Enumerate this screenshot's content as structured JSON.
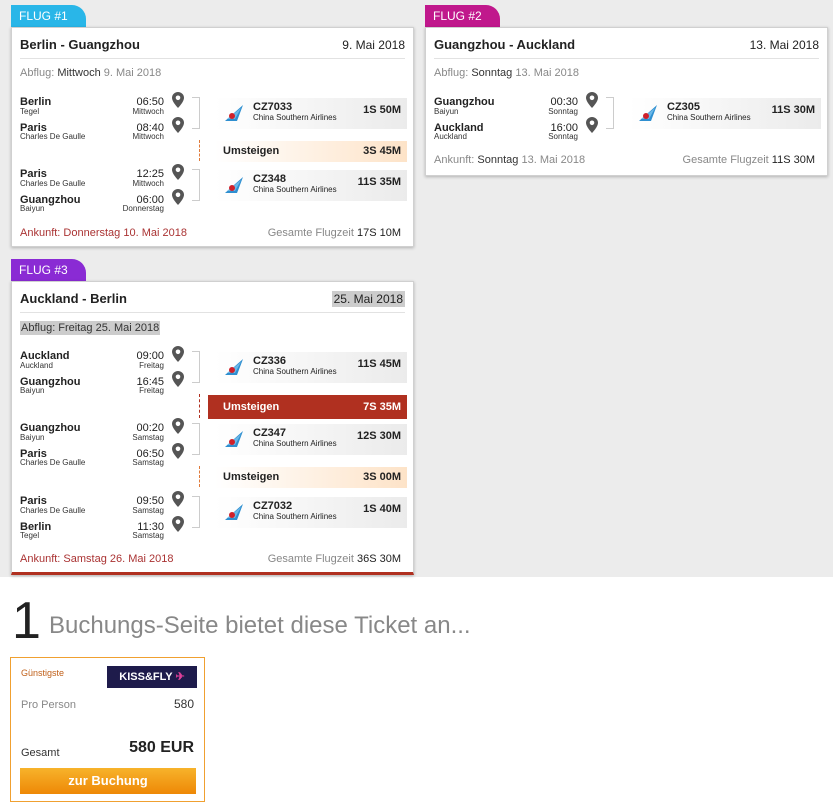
{
  "flights": [
    {
      "tag": "FLUG #1",
      "tag_color": "#29b6e8",
      "route": "Berlin - Guangzhou",
      "date": "9. Mai 2018",
      "departure_label": "Abflug:",
      "departure_day": "Mittwoch",
      "departure_date": "9. Mai 2018",
      "segments": [
        {
          "from_city": "Berlin",
          "from_airport": "Tegel",
          "dep_time": "06:50",
          "dep_day": "Mittwoch",
          "to_city": "Paris",
          "to_airport": "Charles De Gaulle",
          "arr_time": "08:40",
          "arr_day": "Mittwoch",
          "flight_no": "CZ7033",
          "airline": "China Southern Airlines",
          "duration": "1S 50M"
        },
        {
          "from_city": "Paris",
          "from_airport": "Charles De Gaulle",
          "dep_time": "12:25",
          "dep_day": "Mittwoch",
          "to_city": "Guangzhou",
          "to_airport": "Baiyun",
          "arr_time": "06:00",
          "arr_day": "Donnerstag",
          "flight_no": "CZ348",
          "airline": "China Southern Airlines",
          "duration": "11S 35M"
        }
      ],
      "layovers": [
        {
          "label": "Umsteigen",
          "duration": "3S 45M",
          "long": false
        }
      ],
      "arrival_label": "Ankunft: Donnerstag 10. Mai 2018",
      "total_label": "Gesamte Flugzeit",
      "total": "17S 10M"
    },
    {
      "tag": "FLUG #2",
      "tag_color": "#c0188c",
      "route": "Guangzhou - Auckland",
      "date": "13. Mai 2018",
      "departure_label": "Abflug:",
      "departure_day": "Sonntag",
      "departure_date": "13. Mai 2018",
      "segments": [
        {
          "from_city": "Guangzhou",
          "from_airport": "Baiyun",
          "dep_time": "00:30",
          "dep_day": "Sonntag",
          "to_city": "Auckland",
          "to_airport": "Auckland",
          "arr_time": "16:00",
          "arr_day": "Sonntag",
          "flight_no": "CZ305",
          "airline": "China Southern Airlines",
          "duration": "11S 30M"
        }
      ],
      "layovers": [],
      "arrival_label": "Ankunft:",
      "arrival_day": "Sonntag",
      "arrival_date": "13. Mai 2018",
      "total_label": "Gesamte Flugzeit",
      "total": "11S 30M"
    },
    {
      "tag": "FLUG #3",
      "tag_color": "#8a2bd4",
      "route": "Auckland - Berlin",
      "date": "25. Mai 2018",
      "departure_label": "Abflug: Freitag 25. Mai 2018",
      "segments": [
        {
          "from_city": "Auckland",
          "from_airport": "Auckland",
          "dep_time": "09:00",
          "dep_day": "Freitag",
          "to_city": "Guangzhou",
          "to_airport": "Baiyun",
          "arr_time": "16:45",
          "arr_day": "Freitag",
          "flight_no": "CZ336",
          "airline": "China Southern Airlines",
          "duration": "11S 45M"
        },
        {
          "from_city": "Guangzhou",
          "from_airport": "Baiyun",
          "dep_time": "00:20",
          "dep_day": "Samstag",
          "to_city": "Paris",
          "to_airport": "Charles De Gaulle",
          "arr_time": "06:50",
          "arr_day": "Samstag",
          "flight_no": "CZ347",
          "airline": "China Southern Airlines",
          "duration": "12S 30M"
        },
        {
          "from_city": "Paris",
          "from_airport": "Charles De Gaulle",
          "dep_time": "09:50",
          "dep_day": "Samstag",
          "to_city": "Berlin",
          "to_airport": "Tegel",
          "arr_time": "11:30",
          "arr_day": "Samstag",
          "flight_no": "CZ7032",
          "airline": "China Southern Airlines",
          "duration": "1S 40M"
        }
      ],
      "layovers": [
        {
          "label": "Umsteigen",
          "duration": "7S 35M",
          "long": true
        },
        {
          "label": "Umsteigen",
          "duration": "3S 00M",
          "long": false
        }
      ],
      "arrival_label": "Ankunft: Samstag 26. Mai 2018",
      "total_label": "Gesamte Flugzeit",
      "total": "36S 30M"
    }
  ],
  "booking": {
    "count": "1",
    "headline": "Buchungs-Seite bietet diese Ticket an...",
    "badge": "Günstigste",
    "provider": "KISS&FLY",
    "per_person_label": "Pro Person",
    "per_person_value": "580",
    "total_label": "Gesamt",
    "total_value": "580 EUR",
    "button": "zur Buchung"
  },
  "icons": {
    "pin": "map-pin-icon",
    "airline_logo": "china-southern-logo-icon",
    "provider_logo": "kissandfly-logo-icon"
  },
  "colors": {
    "layover_light": "#fde3c8",
    "layover_long": "#b03020",
    "button": "#f29a10",
    "offer_border": "#f0a030"
  }
}
